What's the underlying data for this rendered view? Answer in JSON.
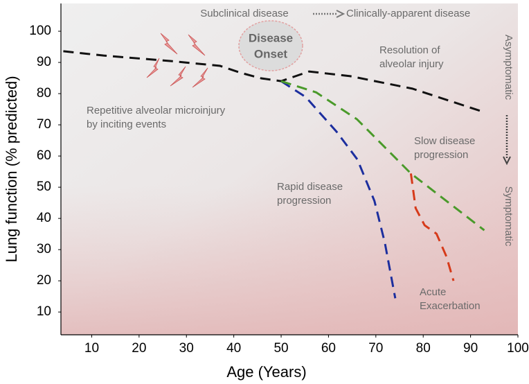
{
  "chart_data": {
    "type": "line",
    "xlabel": "Age (Years)",
    "ylabel": "Lung function (% predicted)",
    "xlim": [
      3.5,
      100
    ],
    "xticks": [
      10,
      20,
      30,
      40,
      50,
      60,
      70,
      80,
      90,
      100
    ],
    "ylim": [
      2.7,
      108.9
    ],
    "yticks": [
      10,
      20,
      30,
      40,
      50,
      60,
      70,
      80,
      90,
      100
    ],
    "series": [
      {
        "color": "#111111",
        "x": [
          4,
          12.5,
          27,
          37.1,
          41.4,
          45.8,
          50,
          55.9,
          64.6,
          77.7,
          92.2
        ],
        "values": [
          93.6,
          92.2,
          90.4,
          88.9,
          86.7,
          84.9,
          84,
          87.1,
          85.6,
          81.6,
          74.4
        ]
      },
      {
        "color": "#1c2e9e",
        "x": [
          50,
          55.2,
          61.7,
          66.1,
          69.7,
          71.9,
          74.1
        ],
        "values": [
          84,
          78.9,
          67.8,
          58.9,
          45.6,
          32.2,
          14.4
        ]
      },
      {
        "color": "#4a9a2a",
        "x": [
          50,
          57.4,
          66,
          77.4,
          84.9,
          92.9
        ],
        "values": [
          84,
          80.4,
          71.8,
          54.4,
          45.6,
          36.2
        ]
      },
      {
        "color": "#d63a1a",
        "x": [
          77.4,
          78.4,
          80.3,
          82.8,
          84.9,
          86.4
        ],
        "values": [
          54.4,
          43.3,
          37.8,
          35.1,
          27.8,
          20
        ]
      }
    ],
    "annotations": [
      {
        "lines": [
          "Subclinical disease"
        ]
      },
      {
        "lines": [
          "Clinically-apparent disease"
        ]
      },
      {
        "lines": [
          "Disease",
          "Onset"
        ]
      },
      {
        "lines": [
          "Resolution of",
          "alveolar injury"
        ]
      },
      {
        "lines": [
          "Repetitive alveolar microinjury",
          "by inciting events"
        ]
      },
      {
        "lines": [
          "Slow disease",
          "progression"
        ]
      },
      {
        "lines": [
          "Rapid disease",
          "progression"
        ]
      },
      {
        "lines": [
          "Acute",
          "Exacerbation"
        ]
      },
      {
        "lines": [
          "Asymptomatic"
        ]
      },
      {
        "lines": [
          "Symptomatic"
        ]
      }
    ]
  }
}
